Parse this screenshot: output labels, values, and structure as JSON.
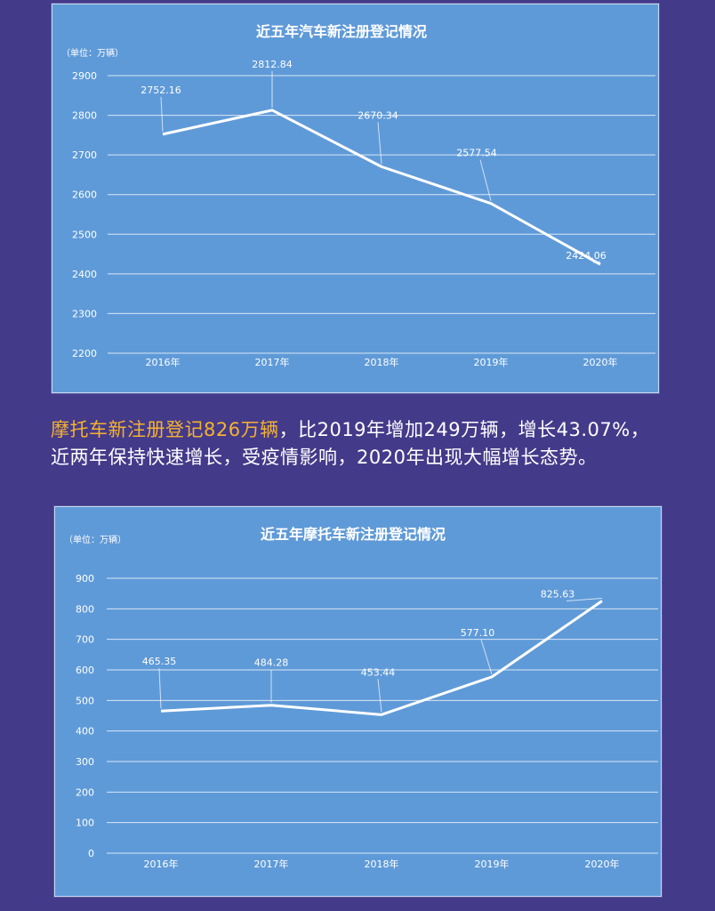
{
  "colors": {
    "background": "#443a8a",
    "panel": "#5f9ad8",
    "highlight": "#f5b230",
    "line": "#ffffff"
  },
  "paragraph": {
    "highlight": "摩托车新注册登记826万辆",
    "rest": "，比2019年增加249万辆，增长43.07%，近两年保持快速增长，受疫情影响，2020年出现大幅增长态势。"
  },
  "chart_data": [
    {
      "type": "line",
      "title": "近五年汽车新注册登记情况",
      "unit": "（单位：万辆）",
      "categories": [
        "2016年",
        "2017年",
        "2018年",
        "2019年",
        "2020年"
      ],
      "values": [
        2752.16,
        2812.84,
        2670.34,
        2577.54,
        2424.06
      ],
      "value_labels": [
        "2752.16",
        "2812.84",
        "2670.34",
        "2577.54",
        "2424.06"
      ],
      "ylim": [
        2200,
        2900
      ],
      "yticks": [
        2900,
        2800,
        2700,
        2600,
        2500,
        2400,
        2300,
        2200
      ],
      "grid": true
    },
    {
      "type": "line",
      "title": "近五年摩托车新注册登记情况",
      "unit": "（单位：万辆）",
      "categories": [
        "2016年",
        "2017年",
        "2018年",
        "2019年",
        "2020年"
      ],
      "values": [
        465.35,
        484.28,
        453.44,
        577.1,
        825.63
      ],
      "value_labels": [
        "465.35",
        "484.28",
        "453.44",
        "577.10",
        "825.63"
      ],
      "ylim": [
        0,
        900
      ],
      "yticks": [
        900,
        800,
        700,
        600,
        500,
        400,
        300,
        200,
        100,
        0
      ],
      "grid": true
    }
  ]
}
